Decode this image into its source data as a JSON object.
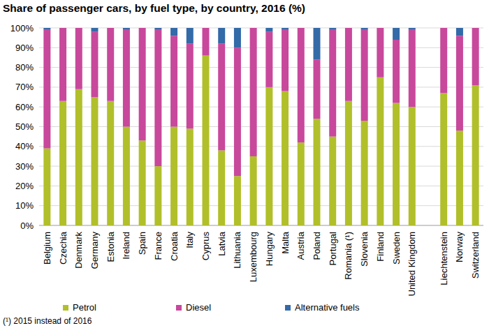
{
  "chart_data": {
    "type": "bar",
    "stacked": true,
    "grid": true,
    "legend": "bottom",
    "title": "Share of passenger cars, by fuel type, by country, 2016 (%)",
    "footnote": "(¹) 2015 instead of 2016",
    "categories": [
      "Belgium",
      "Czechia",
      "Denmark",
      "Germany",
      "Estonia",
      "Ireland",
      "Spain",
      "France",
      "Croatia",
      "Italy",
      "Cyprus",
      "Latvia",
      "Lithuania",
      "Luxembourg",
      "Hungary",
      "Malta",
      "Austria",
      "Poland",
      "Portugal",
      "Romania (¹)",
      "Slovenia",
      "Finland",
      "Sweden",
      "United Kingdom",
      null,
      "Liechtenstein",
      "Norway",
      "Switzerland"
    ],
    "series": [
      {
        "name": "Petrol",
        "color": "#b1bf2a",
        "values": [
          39,
          63,
          69,
          65,
          63,
          50,
          43,
          30,
          50,
          49,
          86,
          38,
          25,
          35,
          70,
          68,
          42,
          54,
          45,
          63,
          53,
          75,
          62,
          60,
          null,
          67,
          48,
          71
        ]
      },
      {
        "name": "Diesel",
        "color": "#c8489c",
        "values": [
          60,
          37,
          31,
          33,
          37,
          49,
          57,
          69,
          46,
          43,
          14,
          54,
          65,
          65,
          28,
          31,
          58,
          30,
          54,
          37,
          46,
          25,
          32,
          39,
          null,
          33,
          48,
          29
        ]
      },
      {
        "name": "Alternative fuels",
        "color": "#336aa8",
        "values": [
          1,
          0,
          0,
          2,
          0,
          1,
          0,
          1,
          4,
          8,
          0,
          8,
          10,
          0,
          2,
          1,
          0,
          16,
          1,
          0,
          1,
          0,
          6,
          1,
          null,
          0,
          4,
          0
        ]
      }
    ],
    "ylim": [
      0,
      100
    ],
    "yticks": [
      {
        "value": 0,
        "label": "0%"
      },
      {
        "value": 10,
        "label": "10%"
      },
      {
        "value": 20,
        "label": "20%"
      },
      {
        "value": 30,
        "label": "30%"
      },
      {
        "value": 40,
        "label": "40%"
      },
      {
        "value": 50,
        "label": "50%"
      },
      {
        "value": 60,
        "label": "60%"
      },
      {
        "value": 70,
        "label": "70%"
      },
      {
        "value": 80,
        "label": "80%"
      },
      {
        "value": 90,
        "label": "90%"
      },
      {
        "value": 100,
        "label": "100%"
      }
    ]
  }
}
